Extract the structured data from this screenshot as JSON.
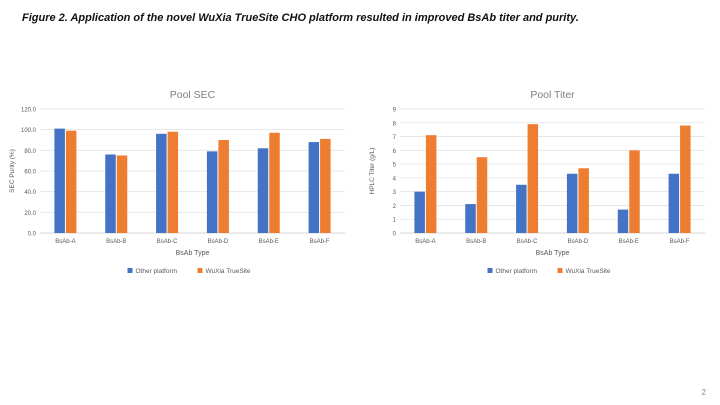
{
  "caption": "Figure 2. Application of the novel WuXia TrueSite CHO platform resulted in improved BsAb titer and purity.",
  "slide_number": "2",
  "colors": {
    "series1": "#4472C4",
    "series2": "#ED7D31",
    "grid": "#e3e3e3",
    "axis": "#c8c8c8",
    "text": "#595959",
    "title": "#7f7f7f"
  },
  "chart_data": [
    {
      "type": "bar",
      "title": "Pool SEC",
      "xlabel": "BsAb Type",
      "ylabel": "SEC Purity (%)",
      "categories": [
        "BsAb-A",
        "BsAb-B",
        "BsAb-C",
        "BsAb-D",
        "BsAb-E",
        "BsAb-F"
      ],
      "yticks": [
        "0.0",
        "20.0",
        "40.0",
        "60.0",
        "80.0",
        "100.0",
        "120.0"
      ],
      "ylim": [
        0,
        120
      ],
      "legend": "bottom",
      "grid": true,
      "series": [
        {
          "name": "Other platform",
          "values": [
            101,
            76,
            96,
            79,
            82,
            88
          ]
        },
        {
          "name": "WuXia TrueSite",
          "values": [
            99,
            75,
            98,
            90,
            97,
            91
          ]
        }
      ]
    },
    {
      "type": "bar",
      "title": "Pool Titer",
      "xlabel": "BsAb Type",
      "ylabel": "HPLC Titer (g/L)",
      "categories": [
        "BsAb-A",
        "BsAb-B",
        "BsAb-C",
        "BsAb-D",
        "BsAb-E",
        "BsAb-F"
      ],
      "yticks": [
        "0",
        "1",
        "2",
        "3",
        "4",
        "5",
        "6",
        "7",
        "8",
        "9"
      ],
      "ylim": [
        0,
        9
      ],
      "legend": "bottom",
      "grid": true,
      "series": [
        {
          "name": "Other platform",
          "values": [
            3.0,
            2.1,
            3.5,
            4.3,
            1.7,
            4.3
          ]
        },
        {
          "name": "WuXia TrueSite",
          "values": [
            7.1,
            5.5,
            7.9,
            4.7,
            6.0,
            7.8
          ]
        }
      ]
    }
  ]
}
